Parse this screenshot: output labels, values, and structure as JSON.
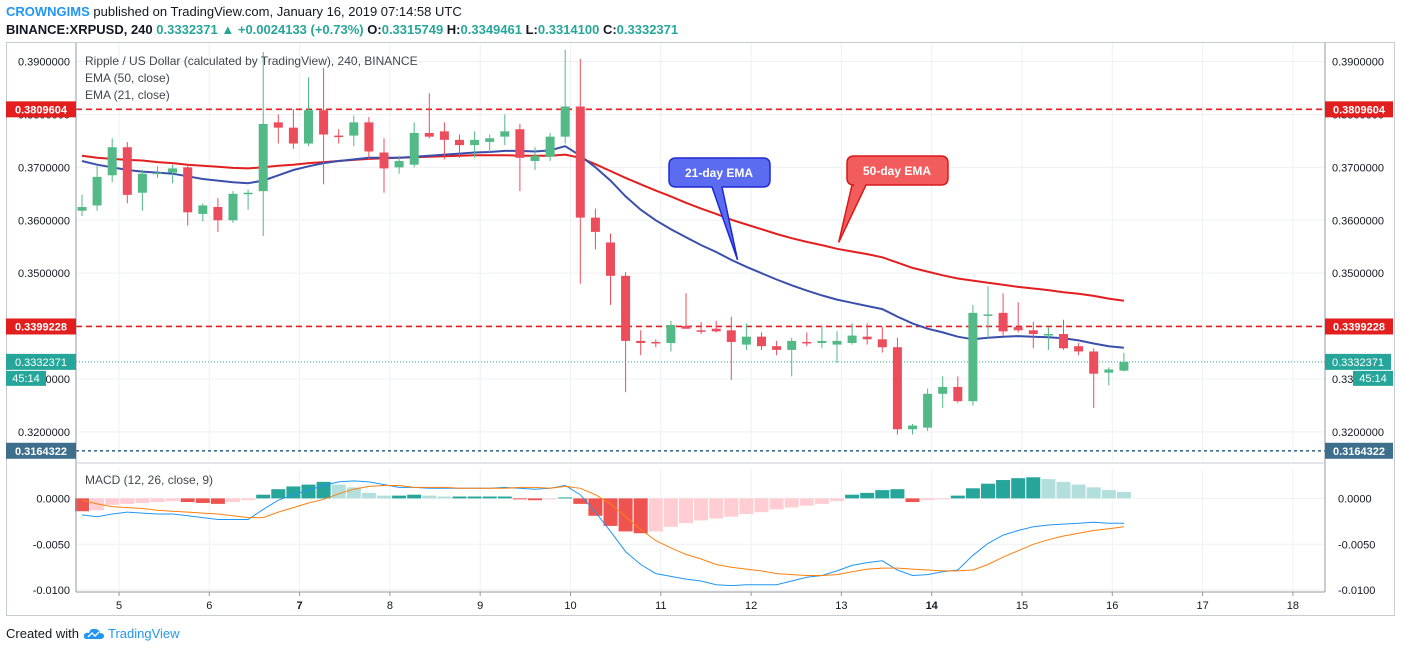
{
  "header": {
    "author": "CROWNGIMS",
    "published_text": " published on TradingView.com, January 16, 2019 07:14:58 UTC",
    "symbol": "BINANCE:XRPUSD, 240",
    "price": "0.3332371",
    "change": "+0.0024133 (+0.73%)",
    "o_label": "O:",
    "o_value": "0.3315749",
    "h_label": "H:",
    "h_value": "0.3349461",
    "l_label": "L:",
    "l_value": "0.3314100",
    "c_label": "C:",
    "c_value": "0.3332371"
  },
  "legend": {
    "title": "Ripple / US Dollar (calculated by TradingView), 240, BINANCE",
    "ema50": "EMA (50, close)",
    "ema21": "EMA (21, close)",
    "macd": "MACD (12, 26, close, 9)"
  },
  "footer": {
    "created_with": "Created with",
    "brand": "TradingView"
  },
  "colors": {
    "bull": "#26a69a",
    "bear": "#ef5350",
    "candle_bull": "#53b987",
    "candle_bear": "#eb4d5c",
    "ema50": "#e31e1e",
    "ema21": "#3a4fad",
    "level": "#e31e1e",
    "current": "#26a69a",
    "support": "#3d6f8c",
    "macd_line": "#2196f3",
    "signal_line": "#ff7f0e",
    "callout21": "#5b6cf0",
    "callout50": "#f25c5c"
  },
  "chart_data": {
    "type": "candlestick",
    "title": "Ripple / US Dollar (calculated by TradingView), 240, BINANCE",
    "x_tick_labels": [
      "5",
      "6",
      "7",
      "8",
      "9",
      "10",
      "11",
      "12",
      "13",
      "14",
      "15",
      "16",
      "17",
      "18"
    ],
    "bold_x_ticks": [
      "7",
      "14"
    ],
    "y_tick_labels": [
      "0.3900000",
      "0.3800000",
      "0.3700000",
      "0.3600000",
      "0.3500000",
      "0.3400000",
      "0.3300000",
      "0.3200000"
    ],
    "ylim": [
      0.3145,
      0.3935
    ],
    "levels": [
      {
        "label": "0.3809604",
        "value": 0.3809604,
        "style": "dashed-red"
      },
      {
        "label": "0.3399228",
        "value": 0.3399228,
        "style": "dashed-red"
      },
      {
        "label": "0.3164322",
        "value": 0.3164322,
        "style": "dashed-blue"
      }
    ],
    "current_price": {
      "label": "0.3332371",
      "value": 0.3332371,
      "countdown": "45:14"
    },
    "annotations": [
      {
        "text": "21-day EMA",
        "target_x": 11.85,
        "target_y": 0.3525
      },
      {
        "text": "50-day EMA",
        "target_x": 12.97,
        "target_y": 0.3558
      }
    ],
    "candles": [
      {
        "o": 0.3618,
        "h": 0.3648,
        "l": 0.3608,
        "c": 0.3625
      },
      {
        "o": 0.3628,
        "h": 0.3702,
        "l": 0.3618,
        "c": 0.3682
      },
      {
        "o": 0.3685,
        "h": 0.3755,
        "l": 0.3672,
        "c": 0.3738
      },
      {
        "o": 0.3738,
        "h": 0.3748,
        "l": 0.3632,
        "c": 0.3648
      },
      {
        "o": 0.3652,
        "h": 0.3695,
        "l": 0.3618,
        "c": 0.3688
      },
      {
        "o": 0.3688,
        "h": 0.3702,
        "l": 0.368,
        "c": 0.369
      },
      {
        "o": 0.369,
        "h": 0.3705,
        "l": 0.367,
        "c": 0.3698
      },
      {
        "o": 0.37,
        "h": 0.3705,
        "l": 0.359,
        "c": 0.3615
      },
      {
        "o": 0.3612,
        "h": 0.3632,
        "l": 0.3598,
        "c": 0.3628
      },
      {
        "o": 0.3625,
        "h": 0.3642,
        "l": 0.3578,
        "c": 0.36
      },
      {
        "o": 0.36,
        "h": 0.3655,
        "l": 0.3595,
        "c": 0.365
      },
      {
        "o": 0.365,
        "h": 0.3658,
        "l": 0.362,
        "c": 0.3652
      },
      {
        "o": 0.3655,
        "h": 0.3918,
        "l": 0.357,
        "c": 0.3782
      },
      {
        "o": 0.3785,
        "h": 0.38,
        "l": 0.3745,
        "c": 0.3775
      },
      {
        "o": 0.3775,
        "h": 0.381,
        "l": 0.3735,
        "c": 0.3745
      },
      {
        "o": 0.3745,
        "h": 0.387,
        "l": 0.374,
        "c": 0.3808
      },
      {
        "o": 0.3808,
        "h": 0.3888,
        "l": 0.3668,
        "c": 0.3762
      },
      {
        "o": 0.376,
        "h": 0.3772,
        "l": 0.3745,
        "c": 0.3758
      },
      {
        "o": 0.376,
        "h": 0.3798,
        "l": 0.374,
        "c": 0.3785
      },
      {
        "o": 0.3785,
        "h": 0.3795,
        "l": 0.3715,
        "c": 0.373
      },
      {
        "o": 0.3728,
        "h": 0.3755,
        "l": 0.3652,
        "c": 0.3698
      },
      {
        "o": 0.37,
        "h": 0.3722,
        "l": 0.3688,
        "c": 0.3712
      },
      {
        "o": 0.3705,
        "h": 0.3785,
        "l": 0.37,
        "c": 0.3765
      },
      {
        "o": 0.3765,
        "h": 0.384,
        "l": 0.3755,
        "c": 0.3758
      },
      {
        "o": 0.3768,
        "h": 0.3785,
        "l": 0.3715,
        "c": 0.3752
      },
      {
        "o": 0.3752,
        "h": 0.3762,
        "l": 0.3718,
        "c": 0.3742
      },
      {
        "o": 0.3742,
        "h": 0.3768,
        "l": 0.3718,
        "c": 0.3752
      },
      {
        "o": 0.3748,
        "h": 0.3762,
        "l": 0.3728,
        "c": 0.3755
      },
      {
        "o": 0.3758,
        "h": 0.38,
        "l": 0.3742,
        "c": 0.3768
      },
      {
        "o": 0.3772,
        "h": 0.3782,
        "l": 0.3655,
        "c": 0.3718
      },
      {
        "o": 0.3712,
        "h": 0.3738,
        "l": 0.3695,
        "c": 0.3722
      },
      {
        "o": 0.372,
        "h": 0.3765,
        "l": 0.3712,
        "c": 0.3758
      },
      {
        "o": 0.3758,
        "h": 0.3922,
        "l": 0.3745,
        "c": 0.3815
      },
      {
        "o": 0.3815,
        "h": 0.3905,
        "l": 0.348,
        "c": 0.3605
      },
      {
        "o": 0.3605,
        "h": 0.3622,
        "l": 0.3545,
        "c": 0.3578
      },
      {
        "o": 0.3558,
        "h": 0.3575,
        "l": 0.344,
        "c": 0.3495
      },
      {
        "o": 0.3495,
        "h": 0.3502,
        "l": 0.3275,
        "c": 0.3372
      },
      {
        "o": 0.3372,
        "h": 0.3392,
        "l": 0.3345,
        "c": 0.3368
      },
      {
        "o": 0.337,
        "h": 0.3375,
        "l": 0.336,
        "c": 0.3368
      },
      {
        "o": 0.3368,
        "h": 0.341,
        "l": 0.3352,
        "c": 0.3402
      },
      {
        "o": 0.34,
        "h": 0.3462,
        "l": 0.3395,
        "c": 0.3395
      },
      {
        "o": 0.3392,
        "h": 0.3408,
        "l": 0.3385,
        "c": 0.339
      },
      {
        "o": 0.3395,
        "h": 0.341,
        "l": 0.3388,
        "c": 0.339
      },
      {
        "o": 0.3392,
        "h": 0.3418,
        "l": 0.3298,
        "c": 0.337
      },
      {
        "o": 0.3365,
        "h": 0.3405,
        "l": 0.3355,
        "c": 0.338
      },
      {
        "o": 0.338,
        "h": 0.3388,
        "l": 0.3355,
        "c": 0.3362
      },
      {
        "o": 0.3362,
        "h": 0.3372,
        "l": 0.3345,
        "c": 0.3355
      },
      {
        "o": 0.3355,
        "h": 0.3378,
        "l": 0.3305,
        "c": 0.3372
      },
      {
        "o": 0.337,
        "h": 0.3388,
        "l": 0.3362,
        "c": 0.3368
      },
      {
        "o": 0.3368,
        "h": 0.34,
        "l": 0.3358,
        "c": 0.3372
      },
      {
        "o": 0.3365,
        "h": 0.339,
        "l": 0.333,
        "c": 0.3372
      },
      {
        "o": 0.3368,
        "h": 0.3405,
        "l": 0.3365,
        "c": 0.3382
      },
      {
        "o": 0.338,
        "h": 0.3405,
        "l": 0.3365,
        "c": 0.3375
      },
      {
        "o": 0.3375,
        "h": 0.3398,
        "l": 0.335,
        "c": 0.336
      },
      {
        "o": 0.336,
        "h": 0.3378,
        "l": 0.3195,
        "c": 0.3205
      },
      {
        "o": 0.3205,
        "h": 0.3215,
        "l": 0.3195,
        "c": 0.3212
      },
      {
        "o": 0.3208,
        "h": 0.3282,
        "l": 0.3202,
        "c": 0.3272
      },
      {
        "o": 0.3272,
        "h": 0.3305,
        "l": 0.3245,
        "c": 0.3285
      },
      {
        "o": 0.3285,
        "h": 0.3305,
        "l": 0.3255,
        "c": 0.3258
      },
      {
        "o": 0.3258,
        "h": 0.344,
        "l": 0.325,
        "c": 0.3425
      },
      {
        "o": 0.342,
        "h": 0.3475,
        "l": 0.3378,
        "c": 0.3422
      },
      {
        "o": 0.3425,
        "h": 0.3462,
        "l": 0.3382,
        "c": 0.339
      },
      {
        "o": 0.3398,
        "h": 0.3445,
        "l": 0.3388,
        "c": 0.3392
      },
      {
        "o": 0.3392,
        "h": 0.3408,
        "l": 0.3358,
        "c": 0.3385
      },
      {
        "o": 0.3385,
        "h": 0.3398,
        "l": 0.3355,
        "c": 0.3385
      },
      {
        "o": 0.3385,
        "h": 0.3412,
        "l": 0.3355,
        "c": 0.3358
      },
      {
        "o": 0.3362,
        "h": 0.3368,
        "l": 0.3345,
        "c": 0.3352
      },
      {
        "o": 0.3352,
        "h": 0.3358,
        "l": 0.3245,
        "c": 0.331
      },
      {
        "o": 0.3312,
        "h": 0.3322,
        "l": 0.3288,
        "c": 0.3318
      },
      {
        "o": 0.3315749,
        "h": 0.3349461,
        "l": 0.33141,
        "c": 0.3332371
      }
    ],
    "ema50": [
      0.3722,
      0.3718,
      0.3716,
      0.3714,
      0.3713,
      0.371,
      0.3708,
      0.3705,
      0.3703,
      0.3701,
      0.3699,
      0.3698,
      0.37,
      0.3703,
      0.3705,
      0.3708,
      0.371,
      0.3712,
      0.3714,
      0.3716,
      0.3717,
      0.3718,
      0.3719,
      0.372,
      0.3721,
      0.3722,
      0.3723,
      0.3723,
      0.3723,
      0.3722,
      0.3722,
      0.3722,
      0.3724,
      0.3718,
      0.3706,
      0.3693,
      0.368,
      0.3668,
      0.3656,
      0.3645,
      0.3633,
      0.3622,
      0.3612,
      0.3601,
      0.3592,
      0.3583,
      0.3574,
      0.3566,
      0.3559,
      0.3553,
      0.3546,
      0.3541,
      0.3536,
      0.353,
      0.352,
      0.351,
      0.3503,
      0.3496,
      0.349,
      0.3486,
      0.3482,
      0.3478,
      0.3474,
      0.3471,
      0.3468,
      0.3464,
      0.3461,
      0.3457,
      0.3452,
      0.3448
    ],
    "ema21": [
      0.3712,
      0.3705,
      0.37,
      0.3695,
      0.3692,
      0.369,
      0.3688,
      0.3683,
      0.3678,
      0.3675,
      0.3672,
      0.367,
      0.3675,
      0.3685,
      0.3695,
      0.3702,
      0.3708,
      0.3712,
      0.3715,
      0.3718,
      0.3718,
      0.3718,
      0.372,
      0.3722,
      0.3724,
      0.3726,
      0.3728,
      0.3729,
      0.3731,
      0.3731,
      0.373,
      0.3732,
      0.374,
      0.3722,
      0.37,
      0.3675,
      0.3645,
      0.362,
      0.36,
      0.3583,
      0.3568,
      0.3553,
      0.354,
      0.3525,
      0.3512,
      0.35,
      0.3488,
      0.3477,
      0.3467,
      0.3458,
      0.345,
      0.3444,
      0.3438,
      0.3432,
      0.3418,
      0.3405,
      0.3395,
      0.3388,
      0.338,
      0.3375,
      0.3378,
      0.338,
      0.3381,
      0.338,
      0.3379,
      0.3377,
      0.3373,
      0.3367,
      0.3362,
      0.3359
    ],
    "macd_ylim": [
      -0.0102,
      0.0032
    ],
    "macd_y_tick_labels": [
      "0.0000",
      "-0.0050",
      "-0.0100"
    ],
    "macd_hist": [
      -0.0014,
      -0.0013,
      -0.0007,
      -0.0006,
      -0.0005,
      -0.0004,
      -0.0003,
      -0.0004,
      -0.0005,
      -0.0006,
      -0.0004,
      -0.0002,
      0.0004,
      0.001,
      0.0013,
      0.0015,
      0.0018,
      0.0015,
      0.0012,
      0.0006,
      0.0003,
      0.0003,
      0.0004,
      0.0003,
      0.0002,
      0.0002,
      0.0002,
      0.0002,
      0.0002,
      -0.0001,
      -0.0002,
      -0.0001,
      0.0001,
      -0.0006,
      -0.0019,
      -0.003,
      -0.0036,
      -0.0038,
      -0.0036,
      -0.0031,
      -0.0027,
      -0.0024,
      -0.0022,
      -0.002,
      -0.0017,
      -0.0015,
      -0.0012,
      -0.001,
      -0.0008,
      -0.0006,
      -0.0003,
      0.0004,
      0.0006,
      0.0009,
      0.001,
      -0.0004,
      -0.0002,
      -0.0001,
      0.0003,
      0.0011,
      0.0016,
      0.002,
      0.0022,
      0.0023,
      0.0021,
      0.0018,
      0.0015,
      0.0012,
      0.0009,
      0.0007
    ],
    "macd_line": [
      -0.0018,
      -0.002,
      -0.0017,
      -0.0015,
      -0.0016,
      -0.0017,
      -0.0017,
      -0.0019,
      -0.0021,
      -0.0023,
      -0.0023,
      -0.0023,
      -0.0012,
      -0.0002,
      0.0004,
      0.0009,
      0.0014,
      0.0018,
      0.0019,
      0.0018,
      0.0015,
      0.0012,
      0.0012,
      0.0011,
      0.0011,
      0.0011,
      0.0011,
      0.0011,
      0.0012,
      0.0011,
      0.001,
      0.0011,
      0.0014,
      0.0004,
      -0.0015,
      -0.0036,
      -0.0058,
      -0.0072,
      -0.0082,
      -0.0085,
      -0.0088,
      -0.009,
      -0.0094,
      -0.0095,
      -0.0094,
      -0.0094,
      -0.0094,
      -0.009,
      -0.0086,
      -0.0084,
      -0.0079,
      -0.0073,
      -0.007,
      -0.0068,
      -0.0078,
      -0.0084,
      -0.0083,
      -0.008,
      -0.0078,
      -0.0062,
      -0.0049,
      -0.004,
      -0.0035,
      -0.0031,
      -0.0029,
      -0.0028,
      -0.0027,
      -0.0026,
      -0.0027,
      -0.0027
    ],
    "signal_line": [
      -0.0002,
      -0.0006,
      -0.0009,
      -0.001,
      -0.0011,
      -0.0013,
      -0.0014,
      -0.0015,
      -0.0016,
      -0.0017,
      -0.0019,
      -0.0021,
      -0.0021,
      -0.0015,
      -0.001,
      -0.0005,
      -0.0001,
      0.0005,
      0.001,
      0.0013,
      0.0014,
      0.0014,
      0.0012,
      0.0012,
      0.0012,
      0.0011,
      0.0011,
      0.0011,
      0.0011,
      0.0012,
      0.0012,
      0.0011,
      0.0013,
      0.0011,
      0.0004,
      -0.0006,
      -0.002,
      -0.0034,
      -0.0046,
      -0.0054,
      -0.0061,
      -0.0066,
      -0.0072,
      -0.0075,
      -0.0077,
      -0.0079,
      -0.0082,
      -0.0083,
      -0.0084,
      -0.0084,
      -0.0083,
      -0.008,
      -0.0077,
      -0.0076,
      -0.0076,
      -0.0077,
      -0.0078,
      -0.0079,
      -0.0079,
      -0.0078,
      -0.0072,
      -0.0064,
      -0.0057,
      -0.005,
      -0.0045,
      -0.0041,
      -0.0038,
      -0.0035,
      -0.0033,
      -0.0031
    ]
  }
}
